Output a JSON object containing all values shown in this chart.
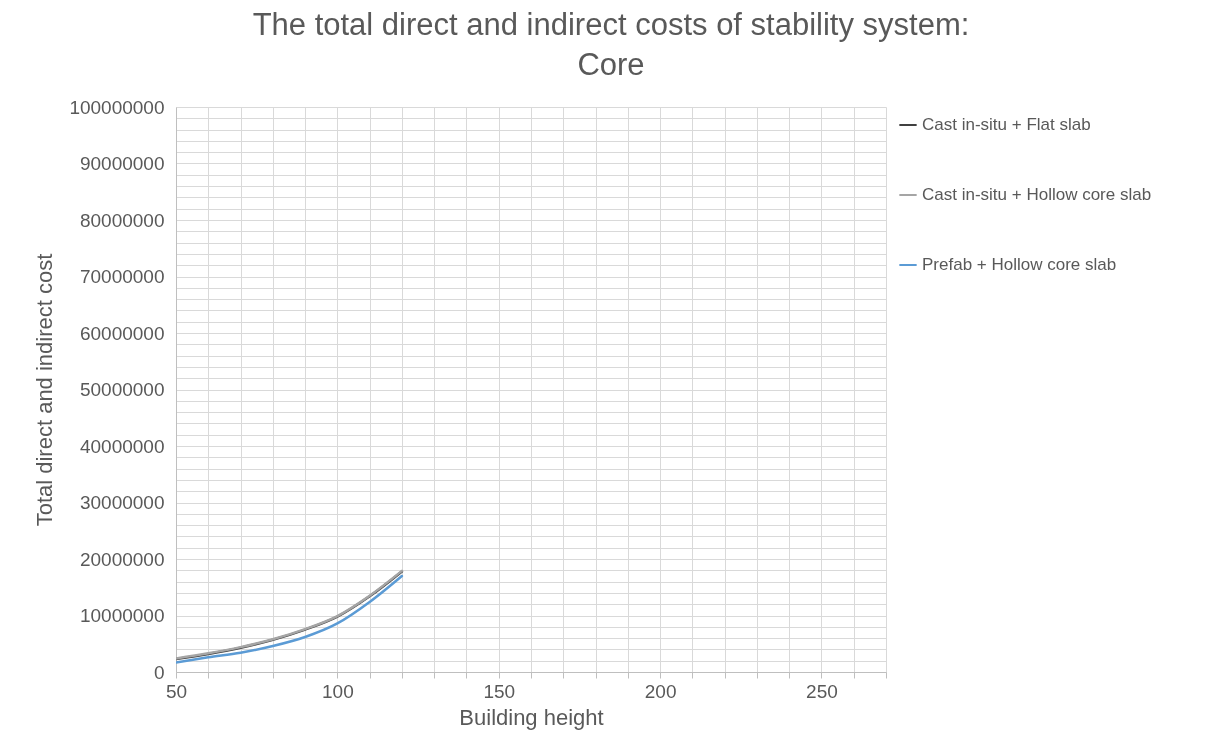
{
  "chart_data": {
    "type": "line",
    "title": [
      "The total direct and indirect costs of stability system:",
      "Core"
    ],
    "xlabel": "Building height",
    "ylabel": "Total direct and indirect cost",
    "x": [
      50,
      60,
      70,
      80,
      90,
      100,
      110,
      120
    ],
    "series": [
      {
        "name": "Cast in-situ + Flat slab",
        "color": "#404040",
        "values": [
          2300000,
          3200000,
          4300000,
          5700000,
          7500000,
          9800000,
          13400000,
          17800000
        ]
      },
      {
        "name": "Cast in-situ + Hollow core slab",
        "color": "#a5a5a5",
        "values": [
          2400000,
          3300000,
          4400000,
          5800000,
          7600000,
          9900000,
          13500000,
          17900000
        ]
      },
      {
        "name": "Prefab + Hollow core slab",
        "color": "#5b9bd5",
        "values": [
          1700000,
          2600000,
          3400000,
          4600000,
          6200000,
          8600000,
          12400000,
          17000000
        ]
      }
    ],
    "xlim": [
      50,
      270
    ],
    "xticks": [
      50,
      {
        "value": 60,
        "label": null
      },
      {
        "value": 70,
        "label": null
      },
      {
        "value": 80,
        "label": null
      },
      {
        "value": 90,
        "label": null
      },
      100,
      {
        "value": 110,
        "label": null
      },
      {
        "value": 120,
        "label": null
      },
      {
        "value": 130,
        "label": null
      },
      {
        "value": 140,
        "label": null
      },
      150,
      {
        "value": 160,
        "label": null
      },
      {
        "value": 170,
        "label": null
      },
      {
        "value": 180,
        "label": null
      },
      {
        "value": 190,
        "label": null
      },
      200,
      {
        "value": 210,
        "label": null
      },
      {
        "value": 220,
        "label": null
      },
      {
        "value": 230,
        "label": null
      },
      {
        "value": 240,
        "label": null
      },
      250,
      {
        "value": 260,
        "label": null
      },
      {
        "value": 270,
        "label": null
      }
    ],
    "ylim": [
      0,
      100000000
    ],
    "yticks": [
      0,
      {
        "value": 2000000,
        "label": null
      },
      {
        "value": 4000000,
        "label": null
      },
      {
        "value": 6000000,
        "label": null
      },
      {
        "value": 8000000,
        "label": null
      },
      10000000,
      {
        "value": 12000000,
        "label": null
      },
      {
        "value": 14000000,
        "label": null
      },
      {
        "value": 16000000,
        "label": null
      },
      {
        "value": 18000000,
        "label": null
      },
      20000000,
      {
        "value": 22000000,
        "label": null
      },
      {
        "value": 24000000,
        "label": null
      },
      {
        "value": 26000000,
        "label": null
      },
      {
        "value": 28000000,
        "label": null
      },
      30000000,
      {
        "value": 32000000,
        "label": null
      },
      {
        "value": 34000000,
        "label": null
      },
      {
        "value": 36000000,
        "label": null
      },
      {
        "value": 38000000,
        "label": null
      },
      40000000,
      {
        "value": 42000000,
        "label": null
      },
      {
        "value": 44000000,
        "label": null
      },
      {
        "value": 46000000,
        "label": null
      },
      {
        "value": 48000000,
        "label": null
      },
      50000000,
      {
        "value": 52000000,
        "label": null
      },
      {
        "value": 54000000,
        "label": null
      },
      {
        "value": 56000000,
        "label": null
      },
      {
        "value": 58000000,
        "label": null
      },
      60000000,
      {
        "value": 62000000,
        "label": null
      },
      {
        "value": 64000000,
        "label": null
      },
      {
        "value": 66000000,
        "label": null
      },
      {
        "value": 68000000,
        "label": null
      },
      70000000,
      {
        "value": 72000000,
        "label": null
      },
      {
        "value": 74000000,
        "label": null
      },
      {
        "value": 76000000,
        "label": null
      },
      {
        "value": 78000000,
        "label": null
      },
      80000000,
      {
        "value": 82000000,
        "label": null
      },
      {
        "value": 84000000,
        "label": null
      },
      {
        "value": 86000000,
        "label": null
      },
      {
        "value": 88000000,
        "label": null
      },
      90000000,
      {
        "value": 92000000,
        "label": null
      },
      {
        "value": 94000000,
        "label": null
      },
      {
        "value": 96000000,
        "label": null
      },
      {
        "value": 98000000,
        "label": null
      },
      100000000
    ],
    "grid": true,
    "legend": "top right",
    "marker": "none",
    "line_style": "solid"
  }
}
